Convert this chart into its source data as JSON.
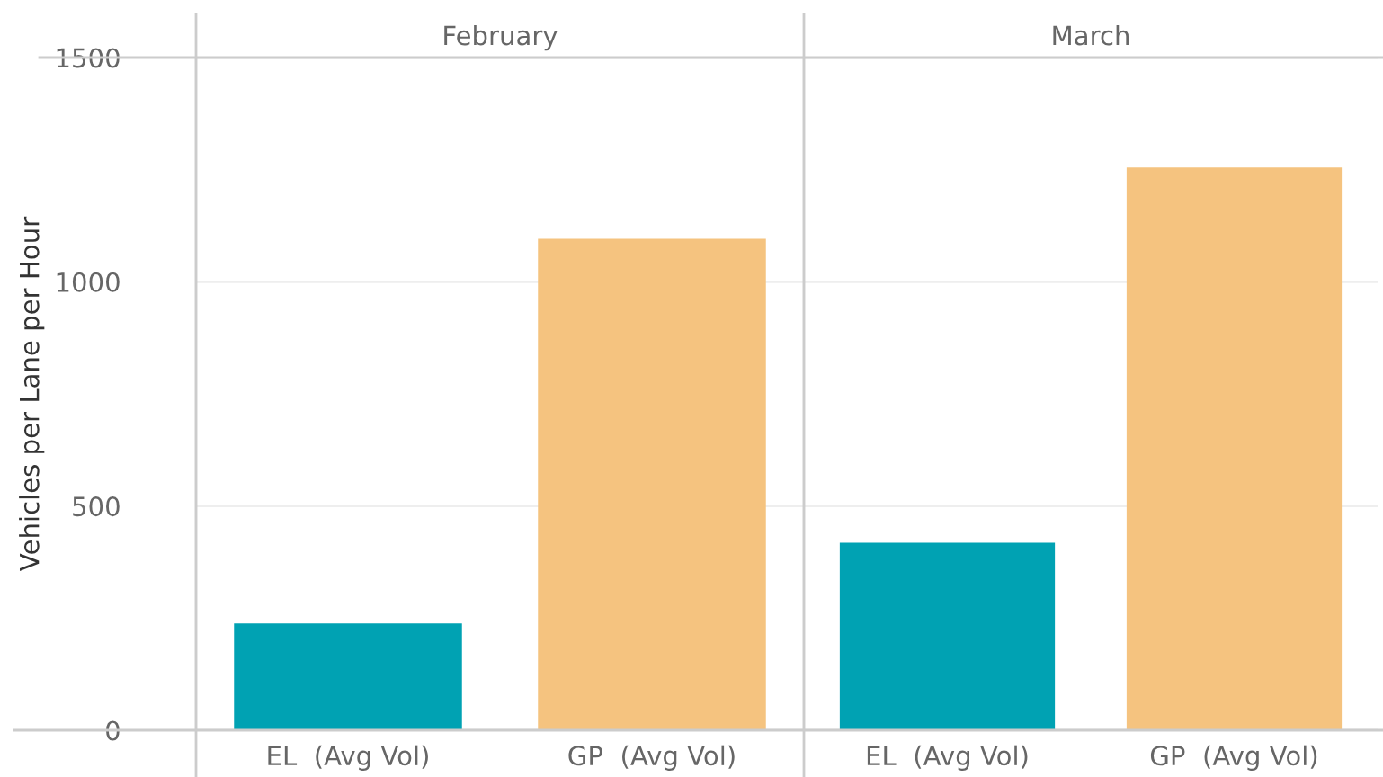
{
  "chart_data": [
    {
      "type": "bar",
      "title": "February",
      "ylabel": "Vehicles per Lane per Hour",
      "categories": [
        "EL  (Avg Vol)",
        "GP  (Avg Vol)"
      ],
      "values": [
        238,
        1096
      ],
      "colors": [
        "#00a2b3",
        "#f5c37f"
      ],
      "ylim": [
        0,
        1500
      ],
      "yticks": [
        0,
        500,
        1000,
        1500
      ],
      "grid": "y"
    },
    {
      "type": "bar",
      "title": "March",
      "categories": [
        "EL  (Avg Vol)",
        "GP  (Avg Vol)"
      ],
      "values": [
        418,
        1255
      ],
      "colors": [
        "#00a2b3",
        "#f5c37f"
      ],
      "ylim": [
        0,
        1500
      ],
      "yticks": [
        0,
        500,
        1000,
        1500
      ],
      "grid": "y",
      "tick_labels": "x"
    }
  ]
}
